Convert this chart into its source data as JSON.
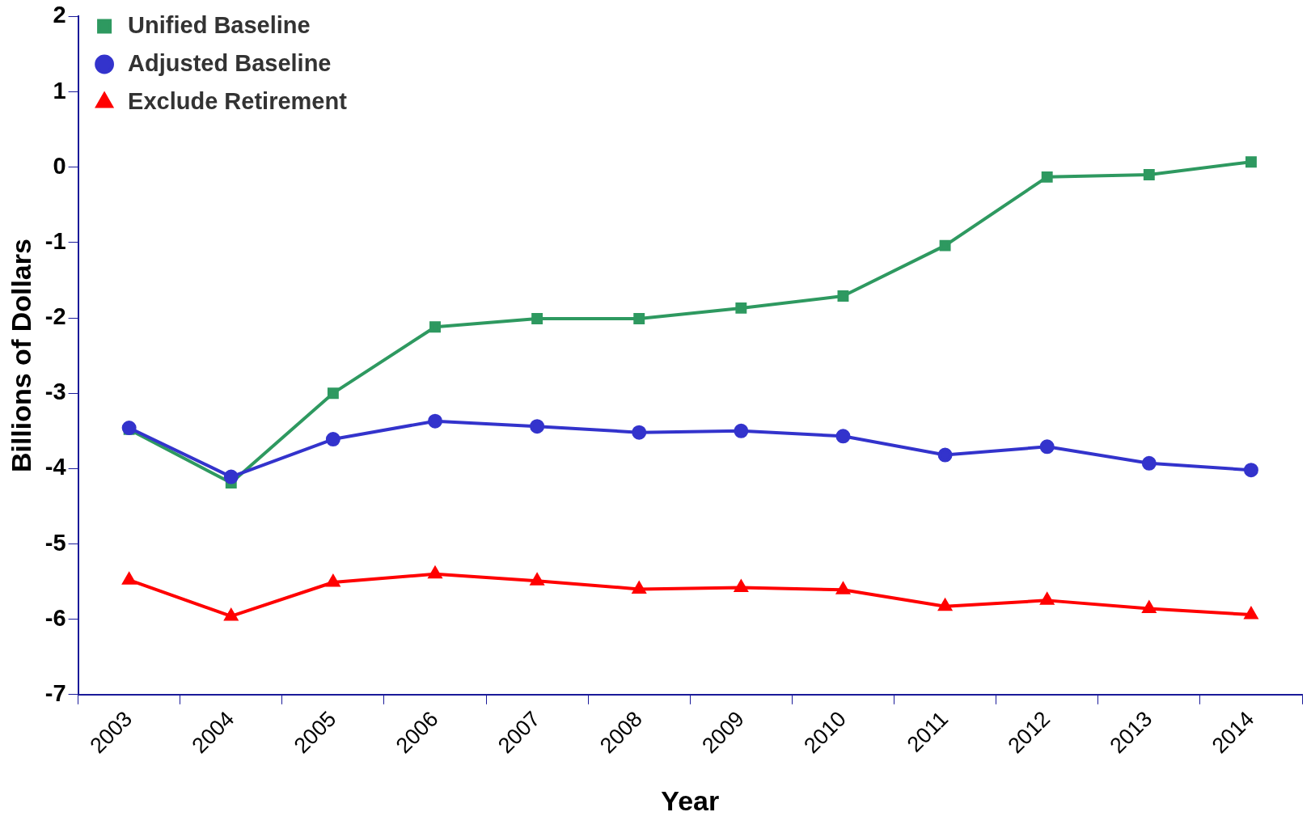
{
  "chart_data": {
    "type": "line",
    "xlabel": "Year",
    "ylabel": "Billions of Dollars",
    "categories": [
      "2003",
      "2004",
      "2005",
      "2006",
      "2007",
      "2008",
      "2009",
      "2010",
      "2011",
      "2012",
      "2013",
      "2014"
    ],
    "series": [
      {
        "name": "Unified Baseline",
        "color": "#2e9960",
        "marker": "square",
        "values": [
          -3.48,
          -4.19,
          -3.0,
          -2.12,
          -2.01,
          -2.01,
          -1.87,
          -1.71,
          -1.04,
          -0.13,
          -0.1,
          0.07
        ]
      },
      {
        "name": "Adjusted Baseline",
        "color": "#3333cc",
        "marker": "circle",
        "values": [
          -3.46,
          -4.11,
          -3.61,
          -3.37,
          -3.44,
          -3.52,
          -3.5,
          -3.57,
          -3.82,
          -3.71,
          -3.93,
          -4.02
        ]
      },
      {
        "name": "Exclude Retirement",
        "color": "#ff0000",
        "marker": "triangle",
        "values": [
          -5.48,
          -5.96,
          -5.51,
          -5.4,
          -5.49,
          -5.6,
          -5.58,
          -5.61,
          -5.83,
          -5.75,
          -5.86,
          -5.94
        ]
      }
    ],
    "ylim": [
      -7,
      2
    ],
    "yticks": [
      -7,
      -6,
      -5,
      -4,
      -3,
      -2,
      -1,
      0,
      1,
      2
    ],
    "grid": false,
    "legend": "top left",
    "line_style": "solid"
  }
}
